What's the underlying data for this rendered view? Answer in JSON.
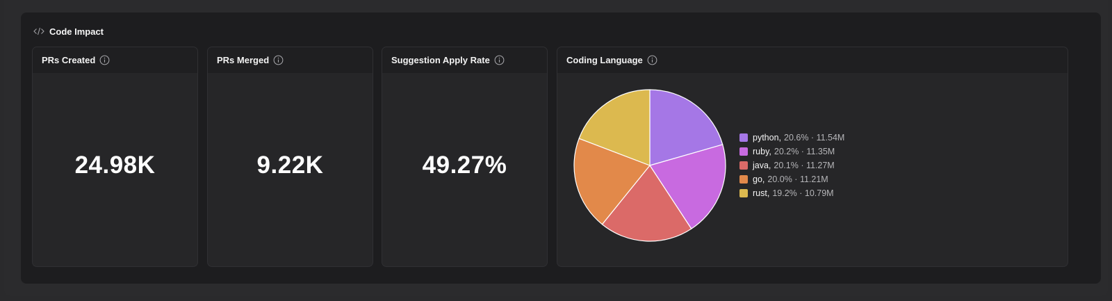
{
  "panel": {
    "title": "Code Impact",
    "icon": "code-icon"
  },
  "cards": {
    "prs_created": {
      "title": "PRs Created",
      "value": "24.98K"
    },
    "prs_merged": {
      "title": "PRs Merged",
      "value": "9.22K"
    },
    "suggestion_apply_rate": {
      "title": "Suggestion Apply Rate",
      "value": "49.27%"
    },
    "coding_language": {
      "title": "Coding Language"
    }
  },
  "legend": [
    {
      "name": "python,",
      "detail": "20.6% · 11.54M",
      "color": "#a577e6"
    },
    {
      "name": "ruby,",
      "detail": "20.2% · 11.35M",
      "color": "#c86ae0"
    },
    {
      "name": "java,",
      "detail": "20.1% · 11.27M",
      "color": "#db6a68"
    },
    {
      "name": "go,",
      "detail": "20.0% · 11.21M",
      "color": "#e2894a"
    },
    {
      "name": "rust,",
      "detail": "19.2% · 10.79M",
      "color": "#dcb94f"
    }
  ],
  "chart_data": {
    "type": "pie",
    "categories": [
      "python",
      "ruby",
      "java",
      "go",
      "rust"
    ],
    "values": [
      11.54,
      11.35,
      11.27,
      11.21,
      10.79
    ],
    "percentages": [
      20.6,
      20.2,
      20.1,
      20.0,
      19.2
    ],
    "unit": "M",
    "colors": [
      "#a577e6",
      "#c86ae0",
      "#db6a68",
      "#e2894a",
      "#dcb94f"
    ],
    "legend_position": "right"
  }
}
